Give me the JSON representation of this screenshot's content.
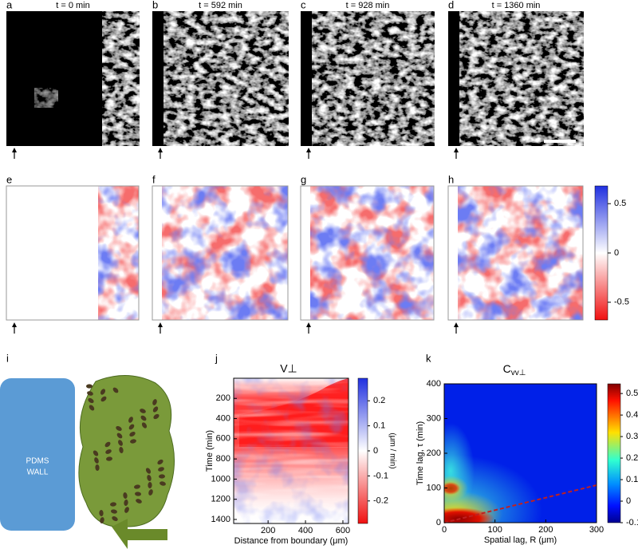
{
  "images": [
    {
      "label": "a",
      "title": "t = 0 min"
    },
    {
      "label": "b",
      "title": "t = 592 min"
    },
    {
      "label": "c",
      "title": "t = 928 min"
    },
    {
      "label": "d",
      "title": "t = 1360 min"
    }
  ],
  "maps": [
    {
      "label": "e"
    },
    {
      "label": "f"
    },
    {
      "label": "g"
    },
    {
      "label": "h"
    }
  ],
  "map_colorbar": {
    "lim": [
      -0.68,
      0.68
    ],
    "ticks": [
      0.5,
      0,
      -0.5
    ]
  },
  "diagram": {
    "label": "i",
    "wall": [
      "PDMS",
      "WALL"
    ]
  },
  "chart_j": {
    "label": "j",
    "title": "V⊥",
    "xlabel": "Distance from boundary (μm)",
    "ylabel": "Time (min)",
    "xlim": [
      16,
      630
    ],
    "xticks": [
      200,
      400,
      600
    ],
    "ylim": [
      0,
      1440
    ],
    "yticks": [
      200,
      400,
      600,
      800,
      1000,
      1200,
      1400
    ],
    "colorbar": {
      "label": "(μm / min)",
      "lim": [
        -0.29,
        0.29
      ],
      "ticks": [
        0.2,
        0.1,
        0,
        -0.1,
        -0.2
      ]
    }
  },
  "chart_k": {
    "label": "k",
    "title": "C",
    "title_sub": "vv⊥",
    "xlabel": "Spatial lag, R (μm)",
    "ylabel": "Time lag, τ (min)",
    "xlim": [
      0,
      300
    ],
    "xticks": [
      0,
      100,
      200,
      300
    ],
    "ylim": [
      0,
      400
    ],
    "yticks": [
      0,
      100,
      200,
      300,
      400
    ],
    "colorbar": {
      "lim": [
        -0.1,
        0.545
      ],
      "ticks": [
        0.5,
        0.4,
        0.3,
        0.2,
        0.1,
        0,
        -0.1
      ]
    }
  }
}
